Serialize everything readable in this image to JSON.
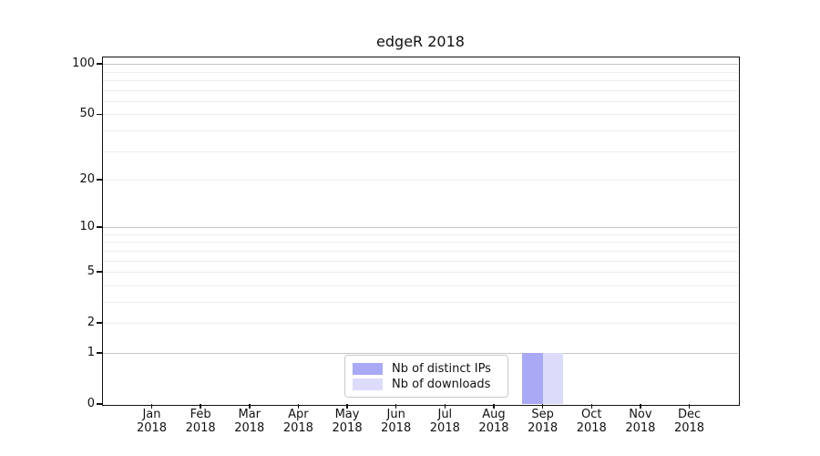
{
  "chart_data": {
    "type": "bar",
    "title": "edgeR 2018",
    "categories": [
      "Jan",
      "Feb",
      "Mar",
      "Apr",
      "May",
      "Jun",
      "Jul",
      "Aug",
      "Sep",
      "Oct",
      "Nov",
      "Dec"
    ],
    "category_year": "2018",
    "series": [
      {
        "name": "Nb of distinct IPs",
        "color": "#a9a9f6",
        "values": [
          0,
          0,
          0,
          0,
          0,
          0,
          0,
          0,
          1,
          0,
          0,
          0
        ]
      },
      {
        "name": "Nb of downloads",
        "color": "#dcdcfa",
        "values": [
          0,
          0,
          0,
          0,
          0,
          0,
          0,
          0,
          1,
          0,
          0,
          0
        ]
      }
    ],
    "xlabel": "",
    "ylabel": "",
    "y_scale": "log1p",
    "ylim": [
      0,
      109
    ],
    "y_axis_ticks": [
      0,
      1,
      2,
      5,
      10,
      20,
      50,
      100
    ],
    "gridlines": {
      "major": [
        1,
        10,
        100
      ],
      "minor": [
        2,
        3,
        4,
        5,
        6,
        7,
        8,
        9,
        20,
        30,
        40,
        50,
        60,
        70,
        80,
        90
      ],
      "major_color": "#c6c6c6",
      "minor_color": "#ededed"
    },
    "legend": {
      "position": "inside lower-center",
      "background": "#ffffff",
      "border_color": "#c9c9c9"
    }
  }
}
